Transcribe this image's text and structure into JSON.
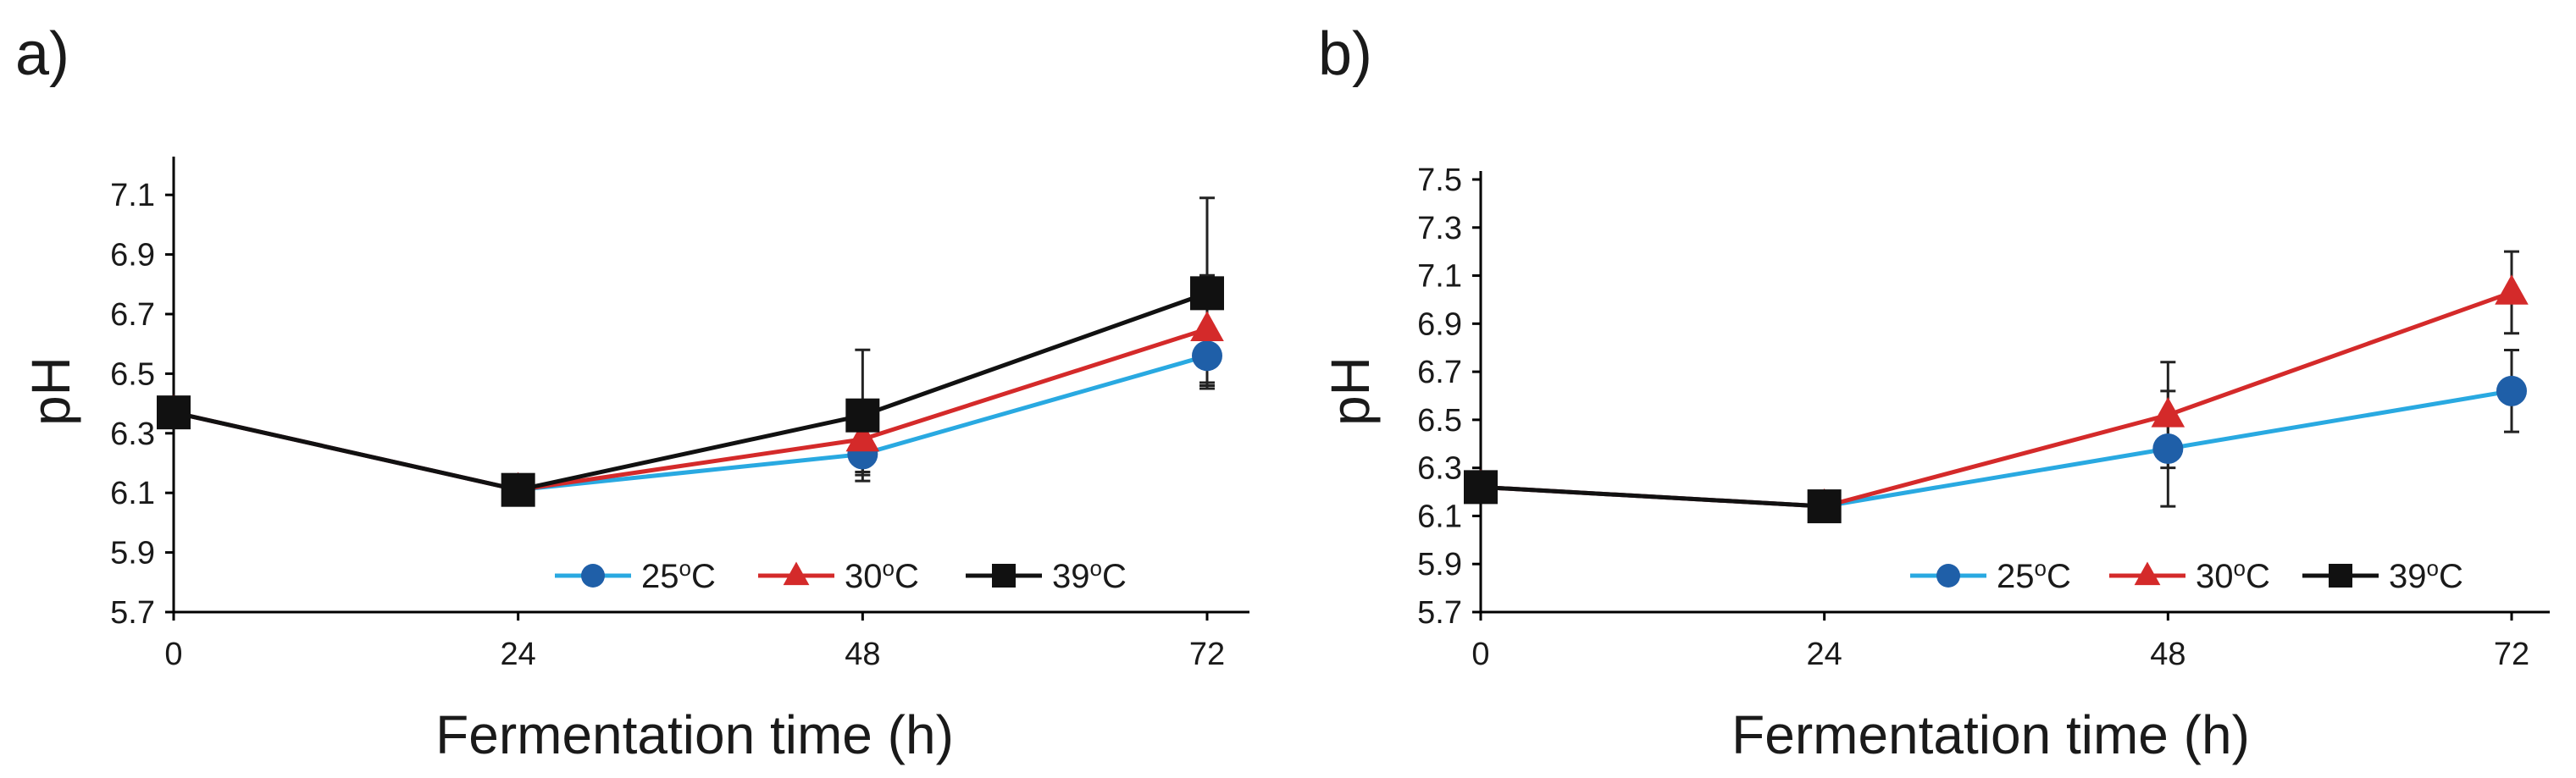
{
  "chart_data": [
    {
      "type": "line",
      "panel_label": "a)",
      "xlabel": "Fermentation time (h)",
      "ylabel": "pH",
      "x": [
        0,
        24,
        48,
        72
      ],
      "x_ticks": [
        "0",
        "24",
        "48",
        "72"
      ],
      "ylim": [
        5.7,
        7.2
      ],
      "y_ticks": [
        "5.7",
        "5.9",
        "6.1",
        "6.3",
        "6.5",
        "6.7",
        "6.9",
        "7.1"
      ],
      "legend_position": "bottom-right",
      "series": [
        {
          "name": "25",
          "unit_sup": "o",
          "unit": "C",
          "marker": "circle",
          "color": "#29a9e1",
          "marker_color": "#1f5fa8",
          "values": [
            6.37,
            6.11,
            6.23,
            6.56
          ],
          "errors": [
            0,
            0,
            0.06,
            0.1
          ]
        },
        {
          "name": "30",
          "unit_sup": "o",
          "unit": "C",
          "marker": "triangle",
          "color": "#d42a2a",
          "marker_color": "#d42a2a",
          "values": [
            6.37,
            6.11,
            6.28,
            6.65
          ],
          "errors": [
            0,
            0,
            0.12,
            0.18
          ]
        },
        {
          "name": "39",
          "unit_sup": "o",
          "unit": "C",
          "marker": "square",
          "color": "#111111",
          "marker_color": "#111111",
          "values": [
            6.37,
            6.11,
            6.36,
            6.77
          ],
          "errors": [
            0,
            0,
            0.22,
            0.32
          ]
        }
      ]
    },
    {
      "type": "line",
      "panel_label": "b)",
      "xlabel": "Fermentation time (h)",
      "ylabel": "pH",
      "x": [
        0,
        24,
        48,
        72
      ],
      "x_ticks": [
        "0",
        "24",
        "48",
        "72"
      ],
      "ylim": [
        5.7,
        7.5
      ],
      "y_ticks": [
        "5.7",
        "5.9",
        "6.1",
        "6.3",
        "6.5",
        "6.7",
        "6.9",
        "7.1",
        "7.3",
        "7.5"
      ],
      "legend_position": "bottom-right",
      "series": [
        {
          "name": "25",
          "unit_sup": "o",
          "unit": "C",
          "marker": "circle",
          "color": "#29a9e1",
          "marker_color": "#1f5fa8",
          "values": [
            6.22,
            6.14,
            6.38,
            6.62
          ],
          "errors": [
            0,
            0,
            0.24,
            0.17
          ]
        },
        {
          "name": "30",
          "unit_sup": "o",
          "unit": "C",
          "marker": "triangle",
          "color": "#d42a2a",
          "marker_color": "#d42a2a",
          "values": [
            6.22,
            6.14,
            6.52,
            7.03
          ],
          "errors": [
            0,
            0,
            0.22,
            0.17
          ]
        },
        {
          "name": "39",
          "unit_sup": "o",
          "unit": "C",
          "marker": "square",
          "color": "#111111",
          "marker_color": "#111111",
          "values": [
            6.22,
            6.14,
            null,
            null
          ],
          "errors": [
            0,
            0,
            0,
            0
          ]
        }
      ]
    }
  ]
}
